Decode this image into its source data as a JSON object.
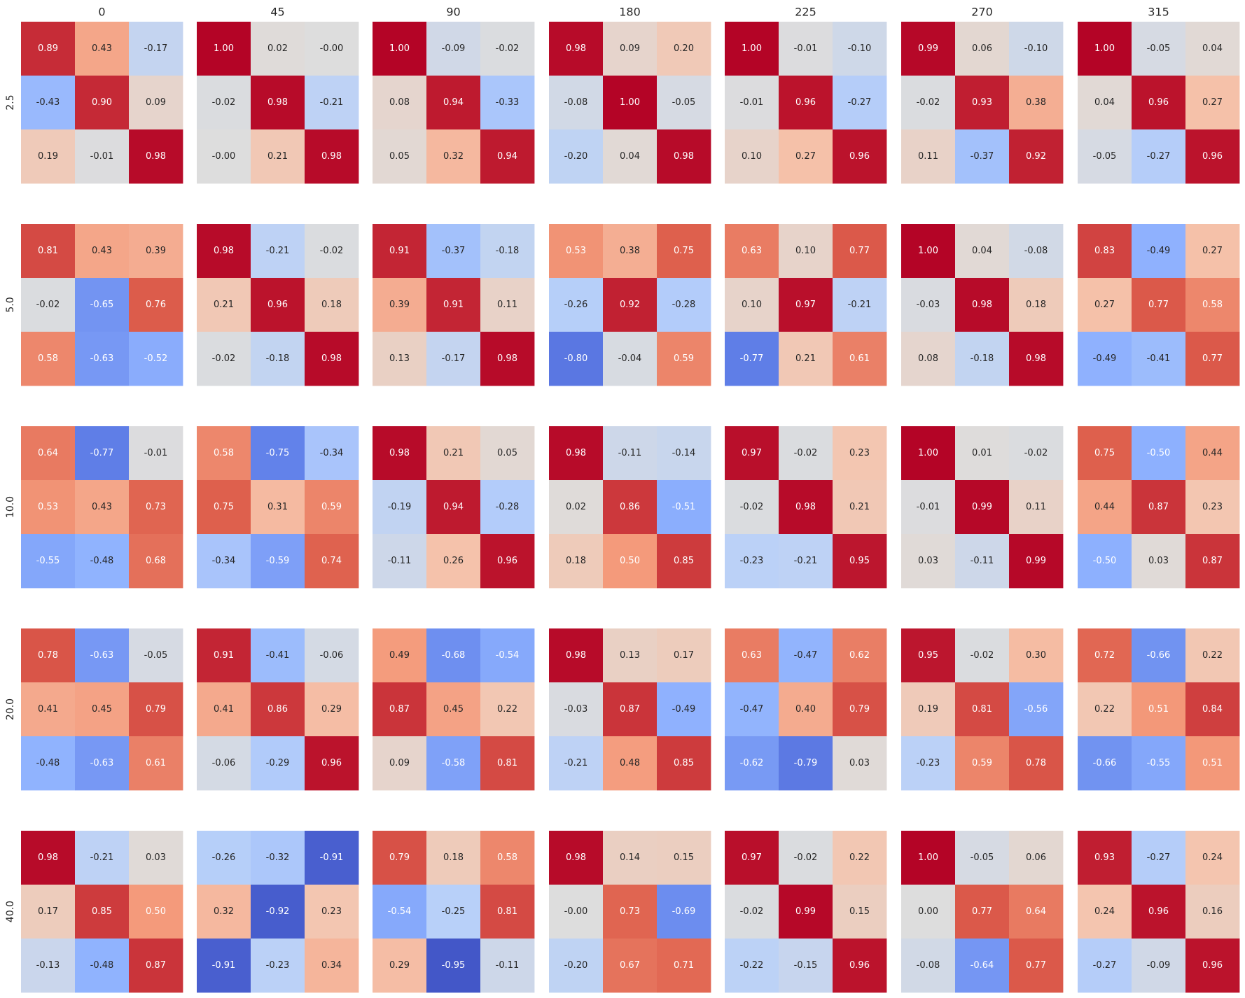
{
  "chart_data": {
    "type": "heatmap",
    "layout": "grid of 3x3 heatmaps",
    "colormap": "coolwarm",
    "value_range": [
      -1,
      1
    ],
    "column_labels": [
      "0",
      "45",
      "90",
      "180",
      "225",
      "270",
      "315"
    ],
    "row_labels": [
      "2.5",
      "5.0",
      "10.0",
      "20.0",
      "40.0"
    ],
    "grid": false,
    "colorbar": false,
    "matrices": [
      [
        [
          [
            0.89,
            0.43,
            -0.17
          ],
          [
            -0.43,
            0.9,
            0.09
          ],
          [
            0.19,
            -0.01,
            0.98
          ]
        ],
        [
          [
            1.0,
            0.02,
            -0.0
          ],
          [
            -0.02,
            0.98,
            -0.21
          ],
          [
            -0.0,
            0.21,
            0.98
          ]
        ],
        [
          [
            1.0,
            -0.09,
            -0.02
          ],
          [
            0.08,
            0.94,
            -0.33
          ],
          [
            0.05,
            0.32,
            0.94
          ]
        ],
        [
          [
            0.98,
            0.09,
            0.2
          ],
          [
            -0.08,
            1.0,
            -0.05
          ],
          [
            -0.2,
            0.04,
            0.98
          ]
        ],
        [
          [
            1.0,
            -0.01,
            -0.1
          ],
          [
            -0.01,
            0.96,
            -0.27
          ],
          [
            0.1,
            0.27,
            0.96
          ]
        ],
        [
          [
            0.99,
            0.06,
            -0.1
          ],
          [
            -0.02,
            0.93,
            0.38
          ],
          [
            0.11,
            -0.37,
            0.92
          ]
        ],
        [
          [
            1.0,
            -0.05,
            0.04
          ],
          [
            0.04,
            0.96,
            0.27
          ],
          [
            -0.05,
            -0.27,
            0.96
          ]
        ]
      ],
      [
        [
          [
            0.81,
            0.43,
            0.39
          ],
          [
            -0.02,
            -0.65,
            0.76
          ],
          [
            0.58,
            -0.63,
            -0.52
          ]
        ],
        [
          [
            0.98,
            -0.21,
            -0.02
          ],
          [
            0.21,
            0.96,
            0.18
          ],
          [
            -0.02,
            -0.18,
            0.98
          ]
        ],
        [
          [
            0.91,
            -0.37,
            -0.18
          ],
          [
            0.39,
            0.91,
            0.11
          ],
          [
            0.13,
            -0.17,
            0.98
          ]
        ],
        [
          [
            0.53,
            0.38,
            0.75
          ],
          [
            -0.26,
            0.92,
            -0.28
          ],
          [
            -0.8,
            -0.04,
            0.59
          ]
        ],
        [
          [
            0.63,
            0.1,
            0.77
          ],
          [
            0.1,
            0.97,
            -0.21
          ],
          [
            -0.77,
            0.21,
            0.61
          ]
        ],
        [
          [
            1.0,
            0.04,
            -0.08
          ],
          [
            -0.03,
            0.98,
            0.18
          ],
          [
            0.08,
            -0.18,
            0.98
          ]
        ],
        [
          [
            0.83,
            -0.49,
            0.27
          ],
          [
            0.27,
            0.77,
            0.58
          ],
          [
            -0.49,
            -0.41,
            0.77
          ]
        ]
      ],
      [
        [
          [
            0.64,
            -0.77,
            -0.01
          ],
          [
            0.53,
            0.43,
            0.73
          ],
          [
            -0.55,
            -0.48,
            0.68
          ]
        ],
        [
          [
            0.58,
            -0.75,
            -0.34
          ],
          [
            0.75,
            0.31,
            0.59
          ],
          [
            -0.34,
            -0.59,
            0.74
          ]
        ],
        [
          [
            0.98,
            0.21,
            0.05
          ],
          [
            -0.19,
            0.94,
            -0.28
          ],
          [
            -0.11,
            0.26,
            0.96
          ]
        ],
        [
          [
            0.98,
            -0.11,
            -0.14
          ],
          [
            0.02,
            0.86,
            -0.51
          ],
          [
            0.18,
            0.5,
            0.85
          ]
        ],
        [
          [
            0.97,
            -0.02,
            0.23
          ],
          [
            -0.02,
            0.98,
            0.21
          ],
          [
            -0.23,
            -0.21,
            0.95
          ]
        ],
        [
          [
            1.0,
            0.01,
            -0.02
          ],
          [
            -0.01,
            0.99,
            0.11
          ],
          [
            0.03,
            -0.11,
            0.99
          ]
        ],
        [
          [
            0.75,
            -0.5,
            0.44
          ],
          [
            0.44,
            0.87,
            0.23
          ],
          [
            -0.5,
            0.03,
            0.87
          ]
        ]
      ],
      [
        [
          [
            0.78,
            -0.63,
            -0.05
          ],
          [
            0.41,
            0.45,
            0.79
          ],
          [
            -0.48,
            -0.63,
            0.61
          ]
        ],
        [
          [
            0.91,
            -0.41,
            -0.06
          ],
          [
            0.41,
            0.86,
            0.29
          ],
          [
            -0.06,
            -0.29,
            0.96
          ]
        ],
        [
          [
            0.49,
            -0.68,
            -0.54
          ],
          [
            0.87,
            0.45,
            0.22
          ],
          [
            0.09,
            -0.58,
            0.81
          ]
        ],
        [
          [
            0.98,
            0.13,
            0.17
          ],
          [
            -0.03,
            0.87,
            -0.49
          ],
          [
            -0.21,
            0.48,
            0.85
          ]
        ],
        [
          [
            0.63,
            -0.47,
            0.62
          ],
          [
            -0.47,
            0.4,
            0.79
          ],
          [
            -0.62,
            -0.79,
            0.03
          ]
        ],
        [
          [
            0.95,
            -0.02,
            0.3
          ],
          [
            0.19,
            0.81,
            -0.56
          ],
          [
            -0.23,
            0.59,
            0.78
          ]
        ],
        [
          [
            0.72,
            -0.66,
            0.22
          ],
          [
            0.22,
            0.51,
            0.84
          ],
          [
            -0.66,
            -0.55,
            0.51
          ]
        ]
      ],
      [
        [
          [
            0.98,
            -0.21,
            0.03
          ],
          [
            0.17,
            0.85,
            0.5
          ],
          [
            -0.13,
            -0.48,
            0.87
          ]
        ],
        [
          [
            -0.26,
            -0.32,
            -0.91
          ],
          [
            0.32,
            -0.92,
            0.23
          ],
          [
            -0.91,
            -0.23,
            0.34
          ]
        ],
        [
          [
            0.79,
            0.18,
            0.58
          ],
          [
            -0.54,
            -0.25,
            0.81
          ],
          [
            0.29,
            -0.95,
            -0.11
          ]
        ],
        [
          [
            0.98,
            0.14,
            0.15
          ],
          [
            -0.0,
            0.73,
            -0.69
          ],
          [
            -0.2,
            0.67,
            0.71
          ]
        ],
        [
          [
            0.97,
            -0.02,
            0.22
          ],
          [
            -0.02,
            0.99,
            0.15
          ],
          [
            -0.22,
            -0.15,
            0.96
          ]
        ],
        [
          [
            1.0,
            -0.05,
            0.06
          ],
          [
            0.0,
            0.77,
            0.64
          ],
          [
            -0.08,
            -0.64,
            0.77
          ]
        ],
        [
          [
            0.93,
            -0.27,
            0.24
          ],
          [
            0.24,
            0.96,
            0.16
          ],
          [
            -0.27,
            -0.09,
            0.96
          ]
        ]
      ]
    ]
  }
}
